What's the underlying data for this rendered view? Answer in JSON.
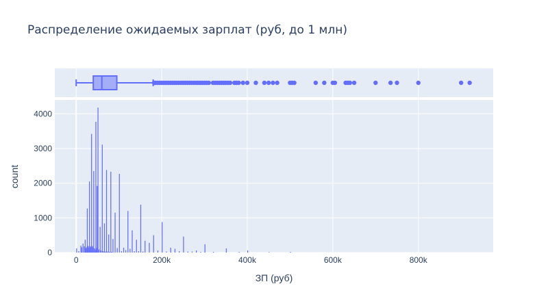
{
  "chart_data": {
    "type": "histogram",
    "title": "Распределение ожидаемых зарплат (руб, до 1 млн)",
    "xlabel": "ЗП (руб)",
    "ylabel": "count",
    "xlim": [
      -50000,
      975000
    ],
    "ylim": [
      0,
      4400
    ],
    "x_ticks": [
      {
        "value": 0,
        "label": "0"
      },
      {
        "value": 200000,
        "label": "200k"
      },
      {
        "value": 400000,
        "label": "400k"
      },
      {
        "value": 600000,
        "label": "600k"
      },
      {
        "value": 800000,
        "label": "800k"
      }
    ],
    "y_ticks": [
      {
        "value": 0,
        "label": "0"
      },
      {
        "value": 1000,
        "label": "1000"
      },
      {
        "value": 2000,
        "label": "2000"
      },
      {
        "value": 3000,
        "label": "3000"
      },
      {
        "value": 4000,
        "label": "4000"
      }
    ],
    "color": "#636efa",
    "background": "#e5ecf6",
    "grid": true,
    "histogram": {
      "bin_width": 2000,
      "bins": [
        {
          "x": 0,
          "count": 120
        },
        {
          "x": 5000,
          "count": 40
        },
        {
          "x": 10000,
          "count": 200
        },
        {
          "x": 12000,
          "count": 150
        },
        {
          "x": 15000,
          "count": 260
        },
        {
          "x": 18000,
          "count": 180
        },
        {
          "x": 20000,
          "count": 370
        },
        {
          "x": 22000,
          "count": 130
        },
        {
          "x": 24000,
          "count": 160
        },
        {
          "x": 25000,
          "count": 1270
        },
        {
          "x": 27000,
          "count": 190
        },
        {
          "x": 28000,
          "count": 140
        },
        {
          "x": 30000,
          "count": 2050
        },
        {
          "x": 32000,
          "count": 180
        },
        {
          "x": 33000,
          "count": 160
        },
        {
          "x": 35000,
          "count": 3420
        },
        {
          "x": 37000,
          "count": 190
        },
        {
          "x": 38000,
          "count": 150
        },
        {
          "x": 40000,
          "count": 2350
        },
        {
          "x": 42000,
          "count": 120
        },
        {
          "x": 44000,
          "count": 80
        },
        {
          "x": 45000,
          "count": 3770
        },
        {
          "x": 47000,
          "count": 130
        },
        {
          "x": 48000,
          "count": 1920
        },
        {
          "x": 50000,
          "count": 4180
        },
        {
          "x": 52000,
          "count": 90
        },
        {
          "x": 55000,
          "count": 740
        },
        {
          "x": 57000,
          "count": 60
        },
        {
          "x": 60000,
          "count": 3110
        },
        {
          "x": 62000,
          "count": 40
        },
        {
          "x": 65000,
          "count": 840
        },
        {
          "x": 67000,
          "count": 30
        },
        {
          "x": 70000,
          "count": 2380
        },
        {
          "x": 72000,
          "count": 30
        },
        {
          "x": 75000,
          "count": 520
        },
        {
          "x": 77000,
          "count": 20
        },
        {
          "x": 80000,
          "count": 2330
        },
        {
          "x": 82000,
          "count": 20
        },
        {
          "x": 85000,
          "count": 390
        },
        {
          "x": 90000,
          "count": 1150
        },
        {
          "x": 95000,
          "count": 130
        },
        {
          "x": 100000,
          "count": 2270
        },
        {
          "x": 105000,
          "count": 40
        },
        {
          "x": 110000,
          "count": 140
        },
        {
          "x": 115000,
          "count": 70
        },
        {
          "x": 120000,
          "count": 1200
        },
        {
          "x": 125000,
          "count": 110
        },
        {
          "x": 130000,
          "count": 640
        },
        {
          "x": 135000,
          "count": 40
        },
        {
          "x": 140000,
          "count": 370
        },
        {
          "x": 145000,
          "count": 40
        },
        {
          "x": 150000,
          "count": 1380
        },
        {
          "x": 155000,
          "count": 30
        },
        {
          "x": 160000,
          "count": 340
        },
        {
          "x": 170000,
          "count": 280
        },
        {
          "x": 180000,
          "count": 500
        },
        {
          "x": 190000,
          "count": 60
        },
        {
          "x": 200000,
          "count": 880
        },
        {
          "x": 210000,
          "count": 30
        },
        {
          "x": 220000,
          "count": 140
        },
        {
          "x": 230000,
          "count": 110
        },
        {
          "x": 240000,
          "count": 40
        },
        {
          "x": 250000,
          "count": 460
        },
        {
          "x": 260000,
          "count": 30
        },
        {
          "x": 270000,
          "count": 30
        },
        {
          "x": 280000,
          "count": 60
        },
        {
          "x": 290000,
          "count": 20
        },
        {
          "x": 300000,
          "count": 240
        },
        {
          "x": 320000,
          "count": 20
        },
        {
          "x": 350000,
          "count": 120
        },
        {
          "x": 380000,
          "count": 20
        },
        {
          "x": 400000,
          "count": 60
        },
        {
          "x": 450000,
          "count": 15
        },
        {
          "x": 500000,
          "count": 20
        }
      ]
    },
    "boxplot": {
      "min": 0,
      "q1": 40000,
      "median": 60000,
      "q3": 95000,
      "upper_fence": 180000,
      "outliers": [
        182000,
        185000,
        190000,
        195000,
        200000,
        205000,
        210000,
        215000,
        220000,
        225000,
        230000,
        235000,
        240000,
        245000,
        250000,
        255000,
        260000,
        265000,
        270000,
        275000,
        280000,
        285000,
        290000,
        295000,
        300000,
        305000,
        310000,
        320000,
        325000,
        330000,
        335000,
        340000,
        345000,
        350000,
        355000,
        360000,
        370000,
        375000,
        380000,
        390000,
        400000,
        420000,
        440000,
        450000,
        460000,
        470000,
        500000,
        505000,
        510000,
        560000,
        580000,
        600000,
        605000,
        630000,
        635000,
        640000,
        650000,
        700000,
        735000,
        750000,
        800000,
        900000,
        920000
      ]
    }
  }
}
